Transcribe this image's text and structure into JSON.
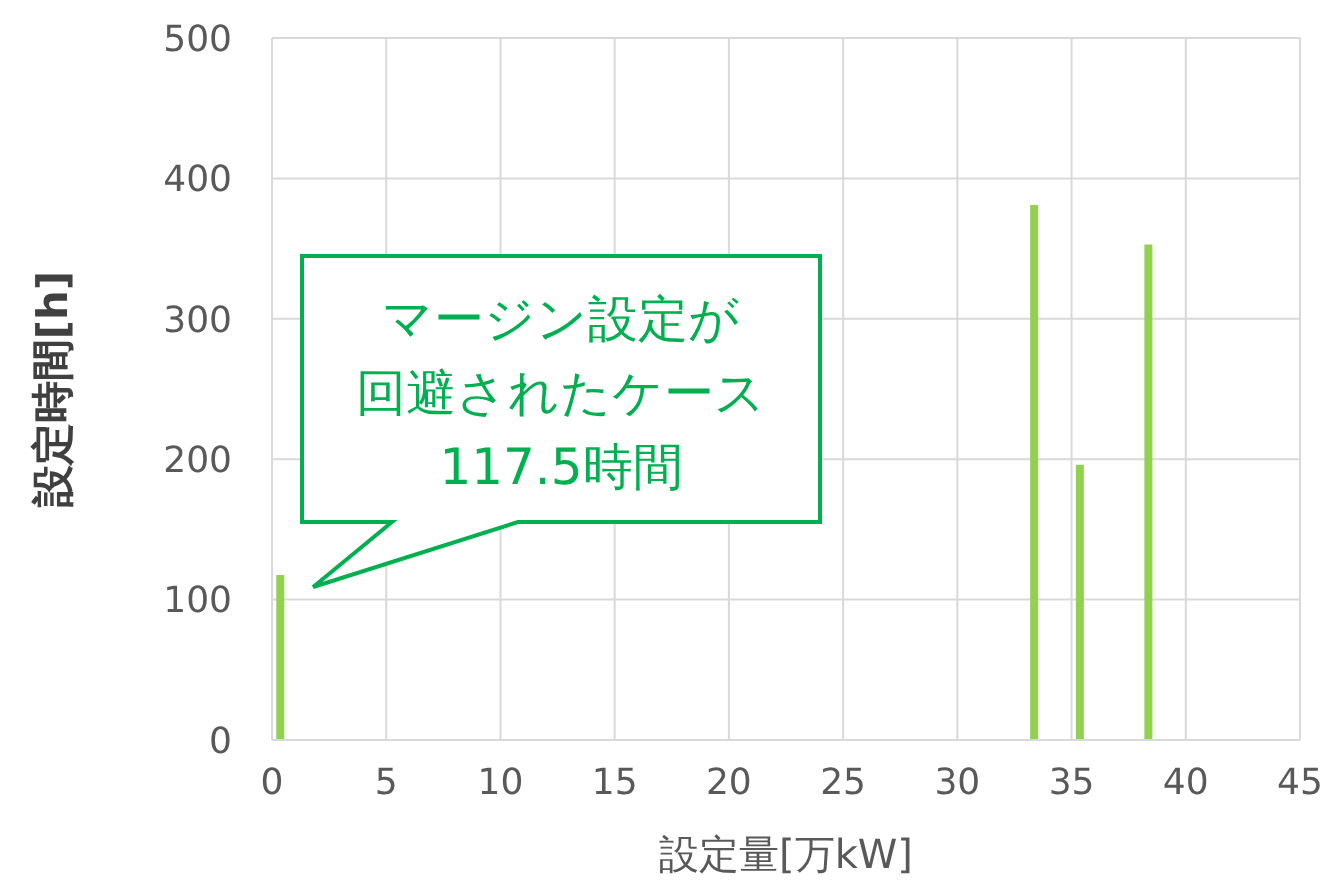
{
  "chart_data": {
    "type": "bar",
    "x": [
      0.4,
      33.4,
      35.4,
      38.4
    ],
    "values": [
      117.5,
      381,
      196,
      353
    ],
    "color": "#92d050",
    "xlim": [
      0,
      45
    ],
    "xticks": [
      0,
      5,
      10,
      15,
      20,
      25,
      30,
      35,
      40,
      45
    ],
    "ylim": [
      0,
      500
    ],
    "yticks": [
      0,
      100,
      200,
      300,
      400,
      500
    ],
    "grid": true,
    "xlabel": "設定量[万kW]",
    "ylabel": "設定時間[h]",
    "annotations": [
      "マージン設定が",
      "回避されたケース",
      "117.5時間"
    ]
  }
}
